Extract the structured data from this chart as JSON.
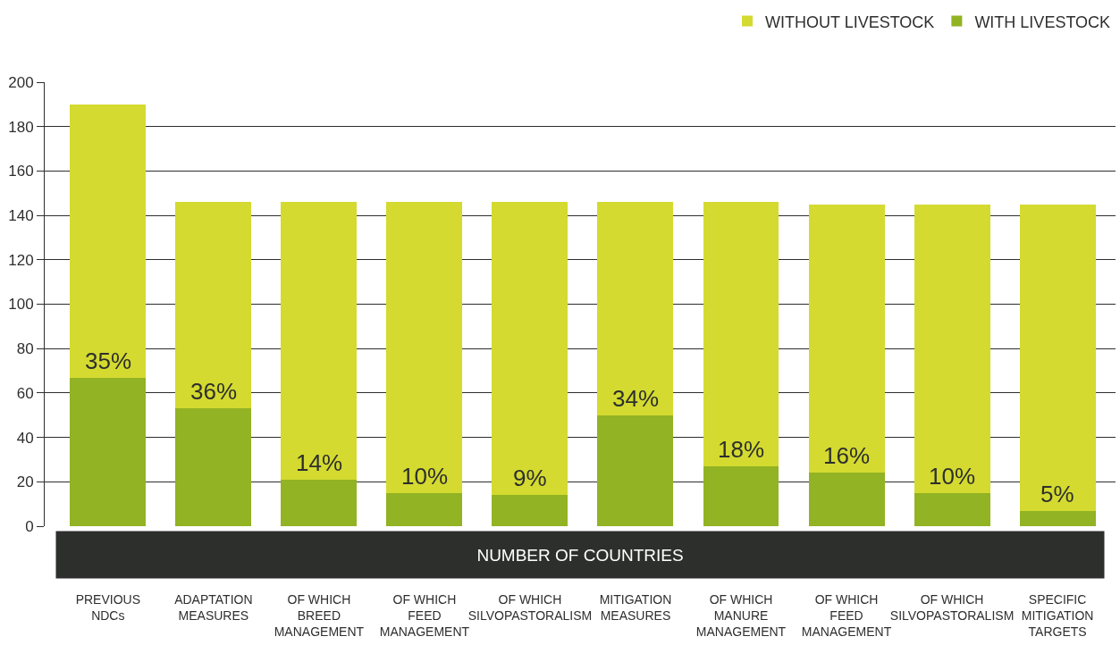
{
  "chart_data": {
    "type": "bar",
    "stacked": true,
    "xlabel": "NUMBER OF COUNTRIES",
    "categories": [
      "PREVIOUS NDCs",
      "ADAPTATION MEASURES",
      "OF WHICH BREED MANAGEMENT",
      "OF WHICH FEED MANAGEMENT",
      "OF WHICH SILVOPASTORALISM",
      "MITIGATION MEASURES",
      "OF WHICH MANURE MANAGEMENT",
      "OF WHICH FEED MANAGEMENT",
      "OF WHICH SILVOPASTORALISM",
      "SPECIFIC MITIGATION TARGETS"
    ],
    "series": [
      {
        "name": "WITH LIVESTOCK",
        "color": "#92b323",
        "values": [
          67,
          53,
          21,
          15,
          14,
          50,
          27,
          24,
          15,
          7
        ]
      },
      {
        "name": "WITHOUT LIVESTOCK",
        "color": "#d4da30",
        "values": [
          123,
          93,
          125,
          131,
          132,
          96,
          119,
          121,
          130,
          138
        ]
      }
    ],
    "annotations": [
      "35%",
      "36%",
      "14%",
      "10%",
      "9%",
      "34%",
      "18%",
      "16%",
      "10%",
      "5%"
    ],
    "ylim": [
      0,
      200
    ],
    "yticks": [
      0,
      20,
      40,
      60,
      80,
      100,
      120,
      140,
      160,
      180,
      200
    ],
    "grid": "y",
    "legend": "top right"
  }
}
